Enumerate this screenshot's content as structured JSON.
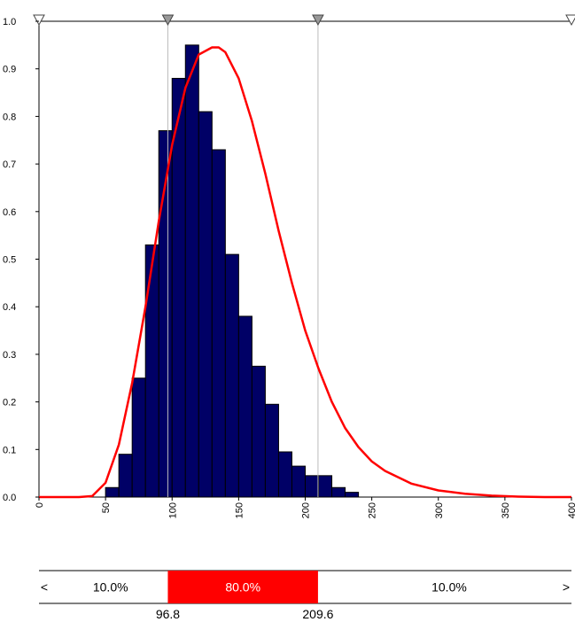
{
  "chart_data": {
    "type": "bar",
    "x": [
      50,
      60,
      70,
      80,
      90,
      100,
      110,
      120,
      130,
      140,
      150,
      160,
      170,
      180,
      190,
      200,
      210,
      220,
      230,
      240,
      250,
      260,
      270,
      280,
      290,
      300,
      310,
      320,
      330,
      340,
      350
    ],
    "bar_width": 10,
    "values": [
      0.02,
      0.09,
      0.25,
      0.53,
      0.77,
      0.88,
      0.95,
      0.81,
      0.73,
      0.51,
      0.38,
      0.275,
      0.195,
      0.095,
      0.065,
      0.045,
      0.045,
      0.02,
      0.01,
      0.0,
      0.0,
      0.0,
      0.0,
      0.0,
      0.0,
      0.0,
      0.0,
      0.0,
      0.0,
      0.0,
      0.0
    ],
    "xlim": [
      0,
      400
    ],
    "ylim": [
      0,
      1.0
    ],
    "xticks": [
      "0",
      "50",
      "100",
      "150",
      "200",
      "250",
      "300",
      "350",
      "400"
    ],
    "yticks": [
      "0.0",
      "0.1",
      "0.2",
      "0.3",
      "0.4",
      "0.5",
      "0.6",
      "0.7",
      "0.8",
      "0.9",
      "1.0"
    ],
    "curve": {
      "type": "lognormal-fit",
      "x": [
        0,
        30,
        40,
        50,
        60,
        70,
        80,
        90,
        100,
        110,
        120,
        130,
        135,
        140,
        150,
        160,
        170,
        180,
        190,
        200,
        210,
        220,
        230,
        240,
        250,
        260,
        280,
        300,
        320,
        340,
        360,
        380,
        400
      ],
      "y": [
        0,
        0,
        0.002,
        0.03,
        0.11,
        0.24,
        0.4,
        0.58,
        0.74,
        0.86,
        0.93,
        0.945,
        0.945,
        0.935,
        0.88,
        0.79,
        0.68,
        0.56,
        0.45,
        0.35,
        0.27,
        0.2,
        0.145,
        0.105,
        0.075,
        0.055,
        0.028,
        0.014,
        0.007,
        0.003,
        0.001,
        0,
        0
      ]
    },
    "markers": [
      0,
      96.8,
      209.6,
      400
    ],
    "colors": {
      "bar": "#000066",
      "curve": "#ff0000",
      "band": "#ff0000",
      "marker": "#999999"
    }
  },
  "probability_bar": {
    "left_arrow": "<",
    "right_arrow": ">",
    "left_pct": "10.0%",
    "mid_pct": "80.0%",
    "right_pct": "10.0%",
    "low_value": "96.8",
    "high_value": "209.6"
  }
}
